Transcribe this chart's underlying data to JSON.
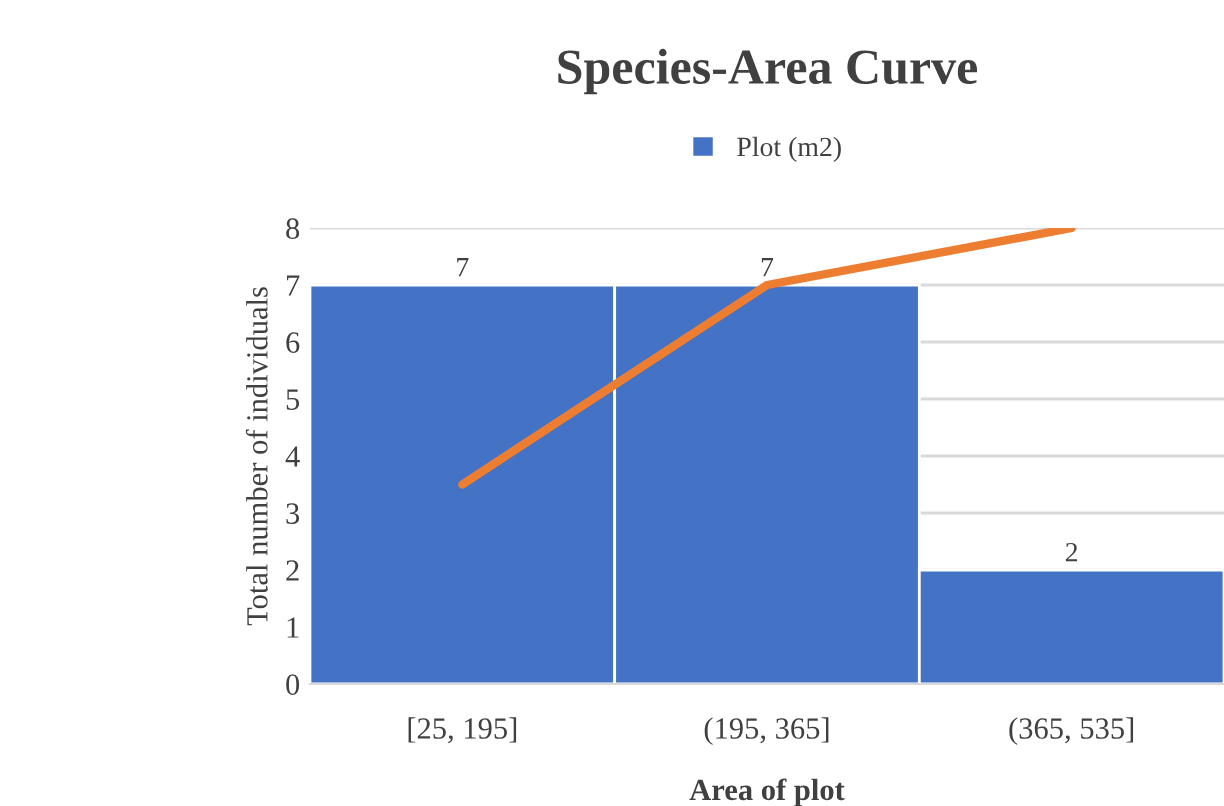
{
  "chart_data": {
    "type": "bar",
    "title": "Species-Area Curve",
    "xlabel": "Area of plot",
    "ylabel": "Total number of individuals",
    "categories": [
      "[25, 195]",
      "(195, 365]",
      "(365, 535]"
    ],
    "series": [
      {
        "name": "Plot (m2)",
        "color": "#4472c4",
        "values": [
          7,
          7,
          2
        ],
        "value_labels": [
          "7",
          "7",
          "2"
        ]
      },
      {
        "type": "line",
        "color": "#ed7d31",
        "values": [
          3.5,
          7,
          8
        ]
      }
    ],
    "ylim": [
      0,
      8
    ],
    "yticks": [
      0,
      1,
      2,
      3,
      4,
      5,
      6,
      7,
      8
    ],
    "grid": "y",
    "legend": "top"
  }
}
